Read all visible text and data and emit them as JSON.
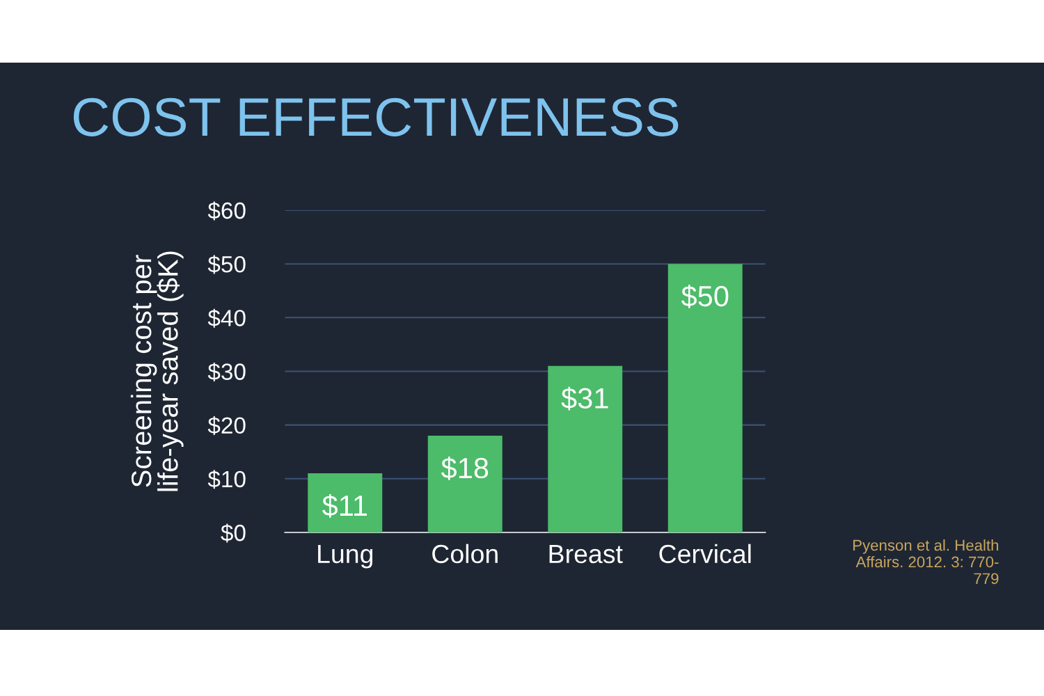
{
  "chart_data": {
    "type": "bar",
    "title": "COST EFFECTIVENESS",
    "ylabel": "Screening cost per\nlife-year saved ($K)",
    "categories": [
      "Lung",
      "Colon",
      "Breast",
      "Cervical"
    ],
    "values": [
      11,
      18,
      31,
      50
    ],
    "value_labels": [
      "$11",
      "$18",
      "$31",
      "$50"
    ],
    "color": "#4cbb6a",
    "ylim": [
      0,
      60
    ],
    "yticks": [
      {
        "value": 0,
        "label": "$0"
      },
      {
        "value": 10,
        "label": "$10"
      },
      {
        "value": 20,
        "label": "$20"
      },
      {
        "value": 30,
        "label": "$30"
      },
      {
        "value": 40,
        "label": "$40"
      },
      {
        "value": 50,
        "label": "$50"
      },
      {
        "value": 60,
        "label": "$60"
      }
    ],
    "grid": "y",
    "legend": false,
    "annotations": [
      "Pyenson et al. Health\nAffairs. 2012. 3: 770-\n779"
    ]
  }
}
